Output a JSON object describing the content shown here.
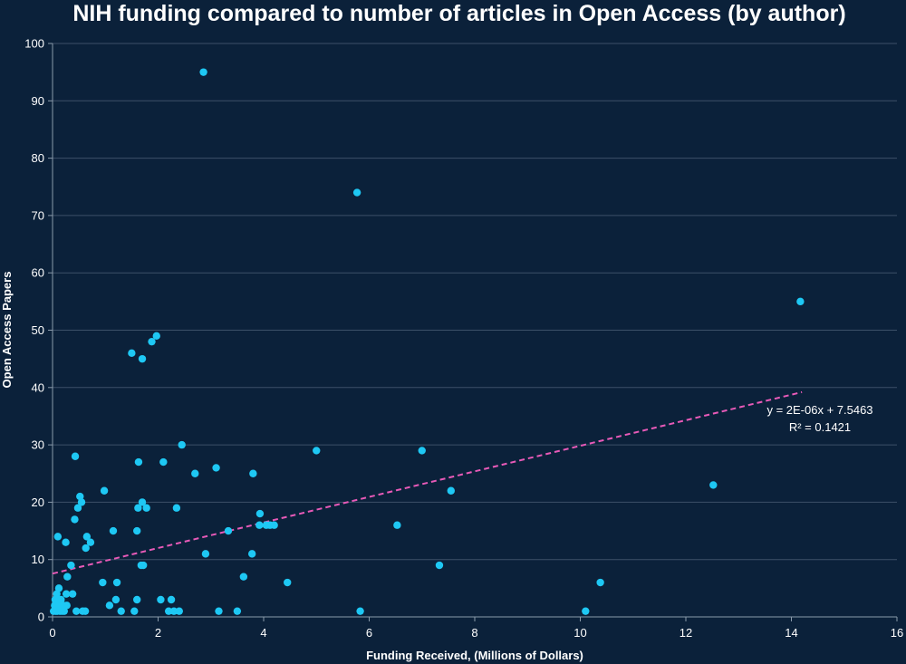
{
  "chart_data": {
    "type": "scatter",
    "title": "NIH funding compared to number of articles in Open Access (by author)",
    "xlabel": "Funding Received, (Millions of Dollars)",
    "ylabel": "Open Access Papers",
    "xlim": [
      0,
      16
    ],
    "ylim": [
      0,
      100
    ],
    "x_ticks": [
      "0",
      "2",
      "4",
      "6",
      "8",
      "10",
      "12",
      "14",
      "16"
    ],
    "y_ticks": [
      "0",
      "10",
      "20",
      "30",
      "40",
      "50",
      "60",
      "70",
      "80",
      "90",
      "100"
    ],
    "grid": "horizontal",
    "colors": {
      "background": "#0b213a",
      "points": "#1ec8f4",
      "trendline": "#e85ab8",
      "gridline": "#3c5068",
      "text": "#ffffff"
    },
    "points": [
      {
        "x": 0.02,
        "y": 1
      },
      {
        "x": 0.04,
        "y": 2
      },
      {
        "x": 0.05,
        "y": 3
      },
      {
        "x": 0.06,
        "y": 1
      },
      {
        "x": 0.07,
        "y": 2
      },
      {
        "x": 0.08,
        "y": 4
      },
      {
        "x": 0.09,
        "y": 1
      },
      {
        "x": 0.1,
        "y": 14
      },
      {
        "x": 0.1,
        "y": 3
      },
      {
        "x": 0.12,
        "y": 2
      },
      {
        "x": 0.12,
        "y": 5
      },
      {
        "x": 0.14,
        "y": 1
      },
      {
        "x": 0.15,
        "y": 2
      },
      {
        "x": 0.16,
        "y": 3
      },
      {
        "x": 0.18,
        "y": 1
      },
      {
        "x": 0.2,
        "y": 2
      },
      {
        "x": 0.22,
        "y": 1
      },
      {
        "x": 0.25,
        "y": 13
      },
      {
        "x": 0.26,
        "y": 4
      },
      {
        "x": 0.27,
        "y": 2
      },
      {
        "x": 0.28,
        "y": 7
      },
      {
        "x": 0.35,
        "y": 9
      },
      {
        "x": 0.38,
        "y": 4
      },
      {
        "x": 0.42,
        "y": 17
      },
      {
        "x": 0.43,
        "y": 28
      },
      {
        "x": 0.45,
        "y": 1
      },
      {
        "x": 0.48,
        "y": 19
      },
      {
        "x": 0.52,
        "y": 21
      },
      {
        "x": 0.55,
        "y": 20
      },
      {
        "x": 0.57,
        "y": 1
      },
      {
        "x": 0.62,
        "y": 1
      },
      {
        "x": 0.63,
        "y": 12
      },
      {
        "x": 0.65,
        "y": 14
      },
      {
        "x": 0.72,
        "y": 13
      },
      {
        "x": 0.95,
        "y": 6
      },
      {
        "x": 0.98,
        "y": 22
      },
      {
        "x": 1.08,
        "y": 2
      },
      {
        "x": 1.15,
        "y": 15
      },
      {
        "x": 1.2,
        "y": 3
      },
      {
        "x": 1.22,
        "y": 6
      },
      {
        "x": 1.3,
        "y": 1
      },
      {
        "x": 1.5,
        "y": 46
      },
      {
        "x": 1.55,
        "y": 1
      },
      {
        "x": 1.6,
        "y": 3
      },
      {
        "x": 1.6,
        "y": 15
      },
      {
        "x": 1.62,
        "y": 19
      },
      {
        "x": 1.63,
        "y": 27
      },
      {
        "x": 1.68,
        "y": 9
      },
      {
        "x": 1.7,
        "y": 45
      },
      {
        "x": 1.7,
        "y": 20
      },
      {
        "x": 1.72,
        "y": 9
      },
      {
        "x": 1.78,
        "y": 19
      },
      {
        "x": 1.88,
        "y": 48
      },
      {
        "x": 1.97,
        "y": 49
      },
      {
        "x": 2.05,
        "y": 3
      },
      {
        "x": 2.1,
        "y": 27
      },
      {
        "x": 2.2,
        "y": 1
      },
      {
        "x": 2.25,
        "y": 3
      },
      {
        "x": 2.3,
        "y": 1
      },
      {
        "x": 2.35,
        "y": 19
      },
      {
        "x": 2.4,
        "y": 1
      },
      {
        "x": 2.45,
        "y": 30
      },
      {
        "x": 2.7,
        "y": 25
      },
      {
        "x": 2.86,
        "y": 95
      },
      {
        "x": 2.9,
        "y": 11
      },
      {
        "x": 3.1,
        "y": 26
      },
      {
        "x": 3.15,
        "y": 1
      },
      {
        "x": 3.33,
        "y": 15
      },
      {
        "x": 3.5,
        "y": 1
      },
      {
        "x": 3.62,
        "y": 7
      },
      {
        "x": 3.78,
        "y": 11
      },
      {
        "x": 3.8,
        "y": 25
      },
      {
        "x": 3.92,
        "y": 16
      },
      {
        "x": 3.93,
        "y": 18
      },
      {
        "x": 4.05,
        "y": 16
      },
      {
        "x": 4.12,
        "y": 16
      },
      {
        "x": 4.2,
        "y": 16
      },
      {
        "x": 4.45,
        "y": 6
      },
      {
        "x": 5.0,
        "y": 29
      },
      {
        "x": 5.77,
        "y": 74
      },
      {
        "x": 5.83,
        "y": 1
      },
      {
        "x": 6.53,
        "y": 16
      },
      {
        "x": 7.0,
        "y": 29
      },
      {
        "x": 7.33,
        "y": 9
      },
      {
        "x": 7.55,
        "y": 22
      },
      {
        "x": 10.1,
        "y": 1
      },
      {
        "x": 10.38,
        "y": 6
      },
      {
        "x": 12.52,
        "y": 23
      },
      {
        "x": 14.17,
        "y": 55
      }
    ],
    "trendline": {
      "x_start": 0,
      "y_start": 7.55,
      "x_end": 14.2,
      "y_end": 39.2,
      "equation": "y = 2E-06x + 7.5463",
      "r_squared": "R² = 0.1421"
    }
  }
}
